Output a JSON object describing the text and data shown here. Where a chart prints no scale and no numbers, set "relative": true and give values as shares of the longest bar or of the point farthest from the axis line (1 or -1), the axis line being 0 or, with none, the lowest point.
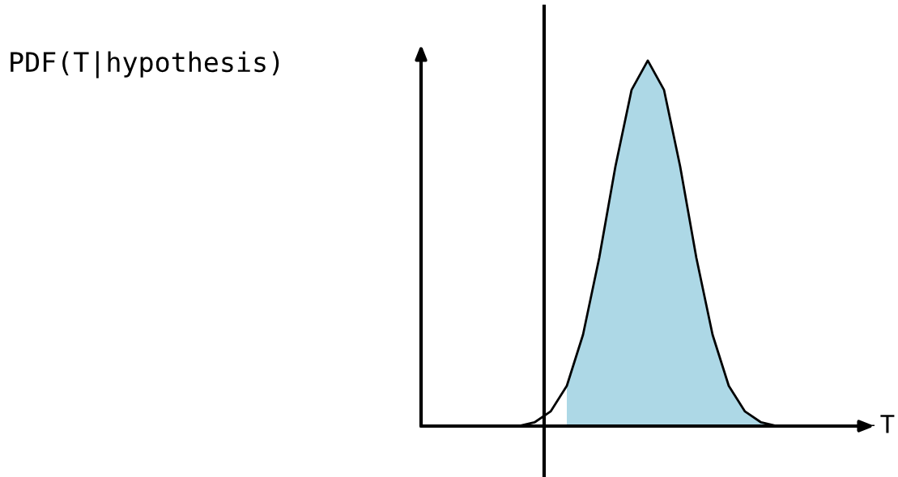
{
  "chart_data": {
    "type": "line",
    "xlabel": "T",
    "ylabel": "PDF(T|hypothesis)",
    "relative": true,
    "categories": [
      null,
      null,
      null,
      null,
      null,
      null,
      null,
      null,
      null,
      null,
      null,
      null,
      null,
      null,
      null,
      null,
      null,
      null,
      null,
      null,
      null,
      null,
      null,
      null,
      null,
      null,
      null,
      null,
      null
    ],
    "series": [
      {
        "type": "area",
        "color": "#add8e6",
        "values": [
          null,
          null,
          null,
          null,
          null,
          null,
          null,
          null,
          null,
          0.11,
          0.25,
          0.46,
          0.71,
          0.92,
          1,
          0.92,
          0.71,
          0.46,
          0.25,
          0.11,
          0.04,
          0.01,
          0,
          0,
          0,
          0,
          0,
          0,
          0
        ]
      },
      {
        "color": "#000000",
        "values": [
          0,
          0,
          0,
          0,
          0,
          0,
          0,
          0.01,
          0.04,
          0.11,
          0.25,
          0.46,
          0.71,
          0.92,
          1,
          0.92,
          0.71,
          0.46,
          0.25,
          0.11,
          0.04,
          0.01,
          0,
          0,
          0,
          0,
          0,
          0,
          0
        ]
      }
    ],
    "grid": false,
    "legend": false,
    "marker": "none",
    "line_style": "solid"
  }
}
